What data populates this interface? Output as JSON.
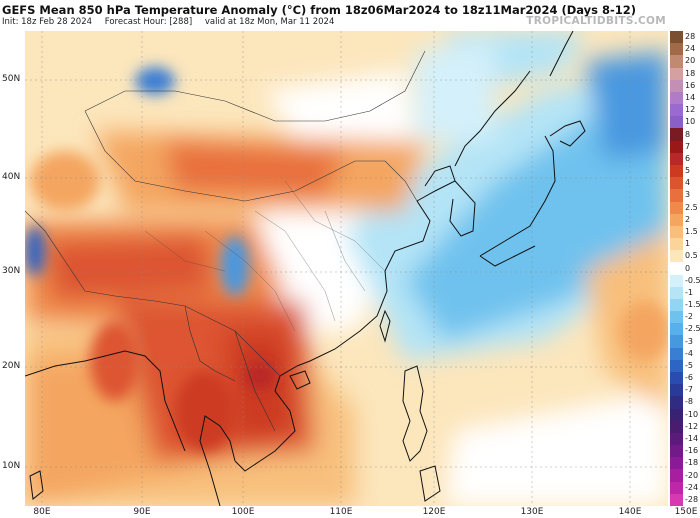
{
  "header": {
    "title": "GEFS Mean 850 hPa Temperature Anomaly (°C) from 18z06Mar2024 to 18z11Mar2024 (Days 8-12)",
    "init": "Init: 18z Feb 28 2024",
    "forecast_hour": "Forecast Hour: [288]",
    "valid": "valid at 18z Mon, Mar 11 2024",
    "credit": "TROPICALTIDBITS.COM"
  },
  "axes": {
    "lat_labels": [
      "50N",
      "40N",
      "30N",
      "20N",
      "10N"
    ],
    "lon_labels": [
      "80E",
      "90E",
      "100E",
      "110E",
      "120E",
      "130E",
      "140E",
      "150E"
    ]
  },
  "legend": {
    "labels": [
      "28",
      "24",
      "20",
      "18",
      "16",
      "14",
      "12",
      "10",
      "8",
      "7",
      "6",
      "5",
      "4",
      "3",
      "2.5",
      "2",
      "1.5",
      "1",
      "0.5",
      "0",
      "-0.5",
      "-1",
      "-1.5",
      "-2",
      "-2.5",
      "-3",
      "-4",
      "-5",
      "-6",
      "-7",
      "-8",
      "-10",
      "-12",
      "-14",
      "-16",
      "-18",
      "-20",
      "-24",
      "-28"
    ],
    "colors": [
      "#7a5030",
      "#a06a48",
      "#c08a70",
      "#d4a0a0",
      "#c38fb5",
      "#b07cc8",
      "#9a6ad0",
      "#8a60c8",
      "#7a1a22",
      "#9a1818",
      "#b82828",
      "#cc3a22",
      "#dd5530",
      "#e8703e",
      "#ef8a4c",
      "#f4a660",
      "#f8bf7c",
      "#fad49a",
      "#fce6bc",
      "#ffffff",
      "#d4f0fa",
      "#b4e4f6",
      "#92d4f2",
      "#70c2ee",
      "#58b0ea",
      "#4898e0",
      "#3a7ed4",
      "#2e64c4",
      "#2a4cb0",
      "#2a3a98",
      "#302c82",
      "#3a2272",
      "#4a1c70",
      "#5c1a7a",
      "#721a88",
      "#8a1a96",
      "#a81e9e",
      "#c026a8",
      "#d838b0"
    ]
  },
  "map_info": {
    "region": "East Asia and Western Pacific",
    "features": [
      "coastlines",
      "country borders",
      "province borders"
    ]
  }
}
